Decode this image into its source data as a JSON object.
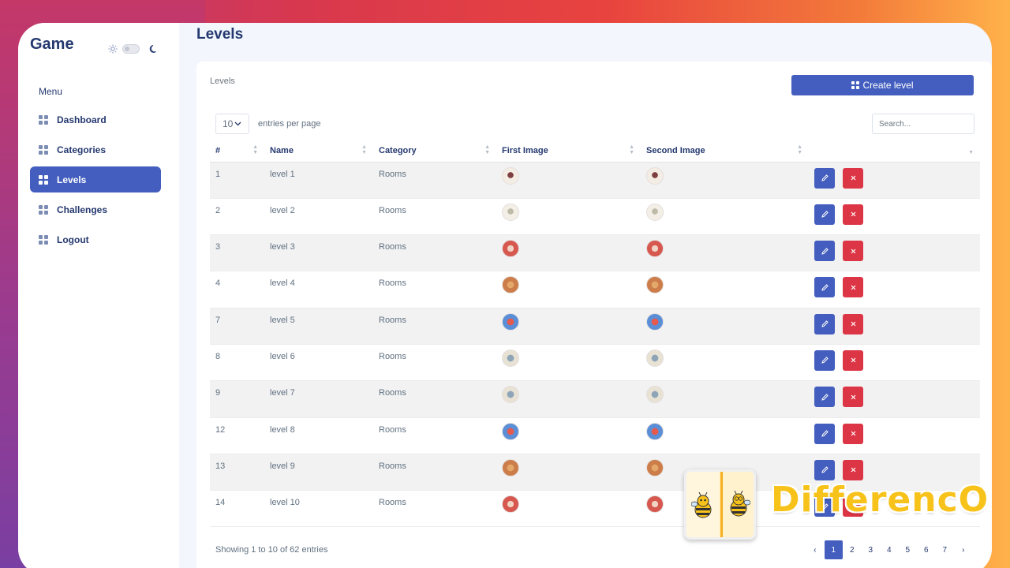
{
  "app": {
    "brand": "Game"
  },
  "sidebar": {
    "menu_title": "Menu",
    "items": [
      {
        "label": "Dashboard",
        "active": false
      },
      {
        "label": "Categories",
        "active": false
      },
      {
        "label": "Levels",
        "active": true
      },
      {
        "label": "Challenges",
        "active": false
      },
      {
        "label": "Logout",
        "active": false
      }
    ]
  },
  "page": {
    "title": "Levels"
  },
  "card": {
    "title": "Levels",
    "create_label": "Create level",
    "per_page_value": "10",
    "per_page_label": "entries per page",
    "search_placeholder": "Search..."
  },
  "table": {
    "columns": [
      "#",
      "Name",
      "Category",
      "First Image",
      "Second Image",
      ""
    ],
    "rows": [
      {
        "id": "1",
        "name": "level 1",
        "category": "Rooms",
        "img": "t1"
      },
      {
        "id": "2",
        "name": "level 2",
        "category": "Rooms",
        "img": "t2"
      },
      {
        "id": "3",
        "name": "level 3",
        "category": "Rooms",
        "img": "t3"
      },
      {
        "id": "4",
        "name": "level 4",
        "category": "Rooms",
        "img": "t4"
      },
      {
        "id": "7",
        "name": "level 5",
        "category": "Rooms",
        "img": "t5"
      },
      {
        "id": "8",
        "name": "level 6",
        "category": "Rooms",
        "img": "t6"
      },
      {
        "id": "9",
        "name": "level 7",
        "category": "Rooms",
        "img": "t6"
      },
      {
        "id": "12",
        "name": "level 8",
        "category": "Rooms",
        "img": "t5"
      },
      {
        "id": "13",
        "name": "level 9",
        "category": "Rooms",
        "img": "t4"
      },
      {
        "id": "14",
        "name": "level 10",
        "category": "Rooms",
        "img": "t3"
      }
    ]
  },
  "footer": {
    "info": "Showing 1 to 10 of 62 entries",
    "pages": [
      "‹",
      "1",
      "2",
      "3",
      "4",
      "5",
      "6",
      "7",
      "›"
    ],
    "active_page": "1"
  },
  "overlay": {
    "brand_word": "DifferencO"
  },
  "colors": {
    "primary": "#435ebe",
    "danger": "#dc3545",
    "text": "#25396f"
  }
}
